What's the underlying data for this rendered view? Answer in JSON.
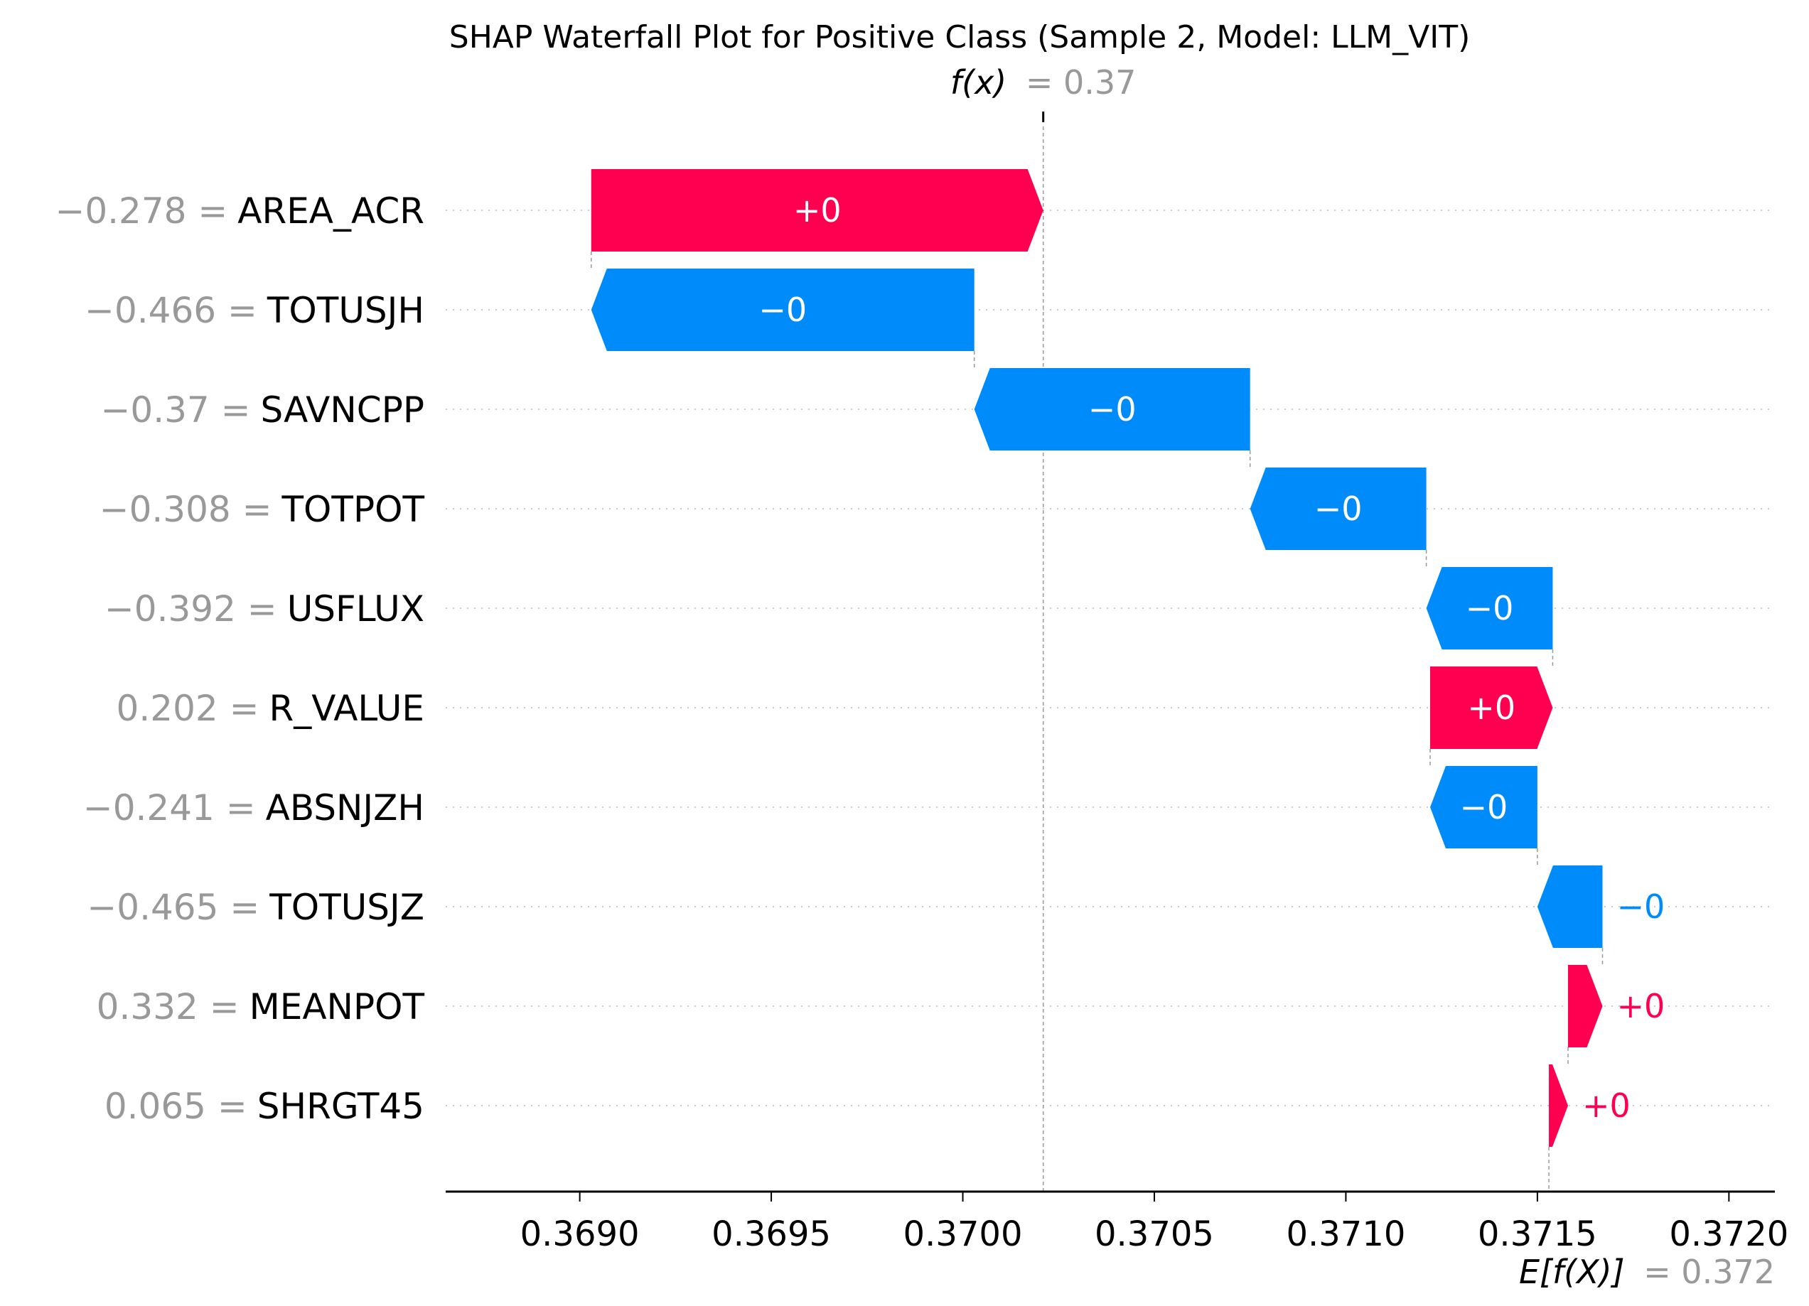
{
  "chart_data": {
    "type": "waterfall",
    "title": "SHAP Waterfall Plot for Positive Class (Sample 2, Model: LLM_VIT)",
    "fx": {
      "label": "f(x)",
      "value_text": "= 0.37",
      "value": 0.37021
    },
    "efx": {
      "label": "E[f(X)]",
      "value_text": "= 0.372",
      "value": 0.37153
    },
    "xlim": [
      0.36865,
      0.37212
    ],
    "x_ticks": [
      0.369,
      0.3695,
      0.37,
      0.3705,
      0.371,
      0.3715,
      0.372
    ],
    "x_tick_labels": [
      "0.3690",
      "0.3695",
      "0.3700",
      "0.3705",
      "0.3710",
      "0.3715",
      "0.3720"
    ],
    "positive_color": "#ff0051",
    "negative_color": "#008bfb",
    "features": [
      {
        "value": "−0.278 =",
        "name": "AREA_ACR",
        "start": 0.36903,
        "end": 0.37021,
        "label": "+0"
      },
      {
        "value": "−0.466 =",
        "name": "TOTUSJH",
        "start": 0.37003,
        "end": 0.36903,
        "label": "−0"
      },
      {
        "value": "−0.37 =",
        "name": "SAVNCPP",
        "start": 0.37075,
        "end": 0.37003,
        "label": "−0"
      },
      {
        "value": "−0.308 =",
        "name": "TOTPOT",
        "start": 0.37121,
        "end": 0.37075,
        "label": "−0"
      },
      {
        "value": "−0.392 =",
        "name": "USFLUX",
        "start": 0.37154,
        "end": 0.37121,
        "label": "−0"
      },
      {
        "value": "0.202 =",
        "name": "R_VALUE",
        "start": 0.37122,
        "end": 0.37154,
        "label": "+0"
      },
      {
        "value": "−0.241 =",
        "name": "ABSNJZH",
        "start": 0.3715,
        "end": 0.37122,
        "label": "−0"
      },
      {
        "value": "−0.465 =",
        "name": "TOTUSJZ",
        "start": 0.37167,
        "end": 0.3715,
        "label": "−0"
      },
      {
        "value": "0.332 =",
        "name": "MEANPOT",
        "start": 0.37158,
        "end": 0.37167,
        "label": "+0"
      },
      {
        "value": "0.065 =",
        "name": "SHRGT45",
        "start": 0.37153,
        "end": 0.37158,
        "label": "+0"
      }
    ]
  }
}
